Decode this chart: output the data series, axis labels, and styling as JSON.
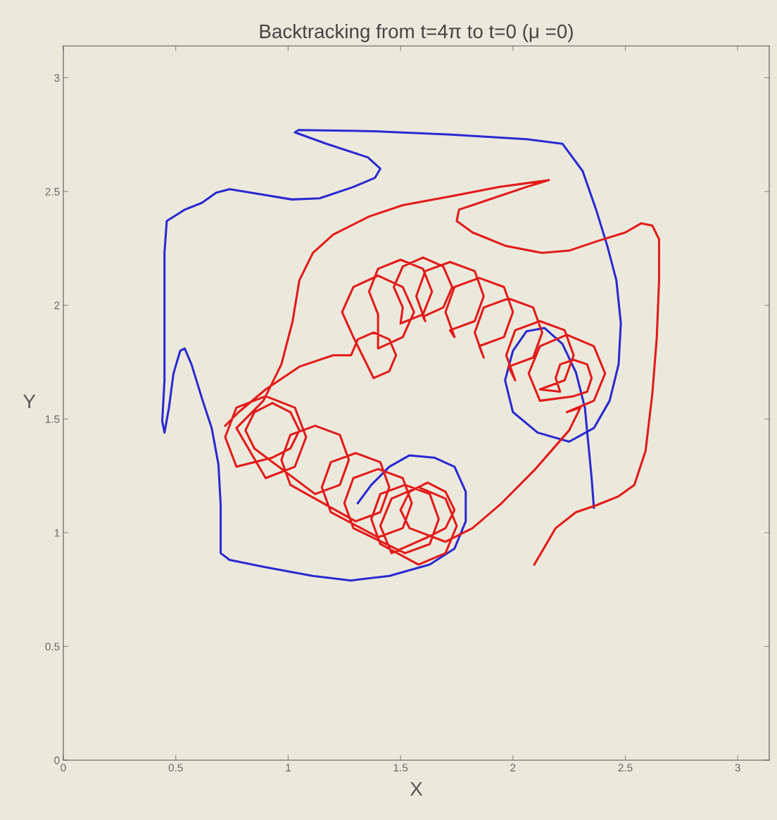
{
  "chart_data": {
    "type": "line",
    "title": "Backtracking from t=4π to t=0 (μ =0)",
    "xlabel": "X",
    "ylabel": "Y",
    "xlim": [
      0,
      3.14
    ],
    "ylim": [
      0,
      3.14
    ],
    "xticks": [
      0,
      0.5,
      1,
      1.5,
      2,
      2.5,
      3
    ],
    "yticks": [
      0,
      0.5,
      1,
      1.5,
      2,
      2.5,
      3
    ],
    "grid": false,
    "marker": "none",
    "line_style": "solid",
    "series": [
      {
        "color": "#2a2ad0",
        "x": [
          2.36,
          2.35,
          2.335,
          2.32,
          2.28,
          2.22,
          2.14,
          2.06,
          2.0,
          1.965,
          2.0,
          2.11,
          2.25,
          2.36,
          2.43,
          2.47,
          2.48,
          2.46,
          2.42,
          2.37,
          2.31,
          2.22,
          2.06,
          1.725,
          1.386,
          1.047,
          1.03,
          1.17,
          1.355,
          1.41,
          1.386,
          1.29,
          1.14,
          1.017,
          0.863,
          0.74,
          0.68,
          0.616,
          0.54,
          0.46,
          0.45,
          0.45,
          0.45,
          0.45,
          0.44,
          0.45,
          0.47,
          0.49,
          0.52,
          0.54,
          0.57,
          0.62,
          0.66,
          0.69,
          0.7,
          0.7,
          0.74,
          0.89,
          1.11,
          1.28,
          1.45,
          1.63,
          1.74,
          1.79,
          1.79,
          1.74,
          1.65,
          1.54,
          1.45,
          1.37,
          1.31
        ],
        "values": [
          1.11,
          1.24,
          1.395,
          1.55,
          1.705,
          1.83,
          1.9,
          1.885,
          1.8,
          1.67,
          1.53,
          1.44,
          1.4,
          1.46,
          1.58,
          1.74,
          1.92,
          2.11,
          2.26,
          2.42,
          2.59,
          2.71,
          2.73,
          2.75,
          2.765,
          2.77,
          2.76,
          2.71,
          2.65,
          2.6,
          2.56,
          2.52,
          2.47,
          2.465,
          2.49,
          2.51,
          2.495,
          2.45,
          2.42,
          2.37,
          2.23,
          2.05,
          1.86,
          1.67,
          1.49,
          1.44,
          1.55,
          1.7,
          1.8,
          1.81,
          1.74,
          1.58,
          1.46,
          1.3,
          1.12,
          0.91,
          0.88,
          0.85,
          0.81,
          0.79,
          0.81,
          0.86,
          0.93,
          1.05,
          1.18,
          1.29,
          1.33,
          1.34,
          1.29,
          1.21,
          1.13
        ]
      },
      {
        "color": "#e21a1a",
        "x": [
          2.095,
          2.19,
          2.28,
          2.37,
          2.47,
          2.54,
          2.59,
          2.62,
          2.64,
          2.65,
          2.65,
          2.62,
          2.57,
          2.5,
          2.37,
          2.25,
          2.13,
          1.97,
          1.82,
          1.75,
          1.76,
          1.88,
          2.06,
          2.16,
          1.94,
          1.73,
          1.51,
          1.36,
          1.2,
          1.11,
          1.05,
          1.02,
          0.97,
          0.89,
          0.77,
          0.9,
          1.03,
          1.08,
          1.03,
          0.9,
          0.77,
          0.72,
          0.77,
          0.93,
          1.01,
          1.05,
          1.01,
          0.93,
          0.85,
          0.81,
          0.85,
          1.12,
          1.23,
          1.27,
          1.23,
          1.12,
          1.01,
          0.97,
          1.01,
          1.3,
          1.41,
          1.45,
          1.41,
          1.3,
          1.19,
          1.15,
          1.19,
          1.4,
          1.51,
          1.55,
          1.51,
          1.4,
          1.29,
          1.25,
          1.29,
          1.52,
          1.63,
          1.67,
          1.63,
          1.52,
          1.41,
          1.37,
          1.41,
          1.58,
          1.7,
          1.75,
          1.7,
          1.58,
          1.46,
          1.41,
          1.46,
          1.62,
          1.7,
          1.74,
          1.7,
          1.62,
          1.54,
          1.5,
          1.54,
          1.7,
          1.82,
          1.95,
          2.1,
          2.25,
          2.3,
          2.24,
          2.36,
          2.41,
          2.36,
          2.24,
          2.12,
          2.07,
          2.12,
          2.27,
          2.33,
          2.35,
          2.33,
          2.27,
          2.21,
          2.19,
          2.21,
          2.12,
          2.23,
          2.27,
          2.23,
          2.12,
          2.01,
          1.97,
          2.01,
          1.98,
          2.09,
          2.13,
          2.09,
          1.98,
          1.87,
          1.83,
          1.87,
          1.85,
          1.96,
          2.0,
          1.96,
          1.85,
          1.74,
          1.7,
          1.74,
          1.72,
          1.83,
          1.87,
          1.83,
          1.72,
          1.61,
          1.57,
          1.61,
          1.6,
          1.69,
          1.73,
          1.69,
          1.6,
          1.51,
          1.47,
          1.51,
          1.5,
          1.6,
          1.64,
          1.6,
          1.5,
          1.4,
          1.36,
          1.4,
          1.4,
          1.51,
          1.56,
          1.51,
          1.4,
          1.29,
          1.24,
          1.29,
          1.38,
          1.45,
          1.48,
          1.45,
          1.38,
          1.31,
          1.28,
          1.2,
          1.05,
          0.9,
          0.78,
          0.72
        ],
        "values": [
          0.86,
          1.02,
          1.09,
          1.12,
          1.16,
          1.21,
          1.36,
          1.61,
          1.86,
          2.11,
          2.29,
          2.35,
          2.36,
          2.32,
          2.28,
          2.24,
          2.23,
          2.26,
          2.32,
          2.37,
          2.42,
          2.46,
          2.52,
          2.55,
          2.52,
          2.48,
          2.44,
          2.39,
          2.31,
          2.23,
          2.11,
          1.93,
          1.74,
          1.58,
          1.46,
          1.24,
          1.29,
          1.42,
          1.55,
          1.6,
          1.55,
          1.42,
          1.29,
          1.33,
          1.37,
          1.45,
          1.53,
          1.57,
          1.53,
          1.45,
          1.37,
          1.17,
          1.21,
          1.32,
          1.43,
          1.47,
          1.43,
          1.32,
          1.21,
          1.05,
          1.09,
          1.2,
          1.31,
          1.35,
          1.31,
          1.2,
          1.09,
          0.98,
          1.02,
          1.13,
          1.24,
          1.28,
          1.24,
          1.13,
          1.02,
          0.91,
          0.95,
          1.06,
          1.17,
          1.21,
          1.17,
          1.06,
          0.95,
          0.86,
          0.91,
          1.03,
          1.15,
          1.2,
          1.15,
          1.03,
          0.91,
          0.98,
          1.02,
          1.1,
          1.18,
          1.22,
          1.18,
          1.1,
          1.02,
          0.96,
          1.02,
          1.13,
          1.28,
          1.45,
          1.55,
          1.53,
          1.58,
          1.7,
          1.82,
          1.87,
          1.82,
          1.7,
          1.58,
          1.6,
          1.62,
          1.68,
          1.74,
          1.76,
          1.74,
          1.68,
          1.62,
          1.63,
          1.67,
          1.78,
          1.89,
          1.93,
          1.89,
          1.78,
          1.67,
          1.73,
          1.77,
          1.88,
          1.99,
          2.03,
          1.99,
          1.88,
          1.77,
          1.82,
          1.86,
          1.97,
          2.08,
          2.12,
          2.08,
          1.97,
          1.86,
          1.89,
          1.93,
          2.04,
          2.15,
          2.19,
          2.15,
          2.04,
          1.93,
          1.95,
          1.99,
          2.08,
          2.17,
          2.21,
          2.17,
          2.08,
          1.99,
          1.92,
          1.96,
          2.06,
          2.16,
          2.2,
          2.16,
          2.06,
          1.96,
          1.81,
          1.86,
          1.97,
          2.08,
          2.13,
          2.08,
          1.97,
          1.86,
          1.68,
          1.71,
          1.78,
          1.85,
          1.88,
          1.85,
          1.78,
          1.78,
          1.73,
          1.63,
          1.53,
          1.47
        ]
      }
    ]
  }
}
